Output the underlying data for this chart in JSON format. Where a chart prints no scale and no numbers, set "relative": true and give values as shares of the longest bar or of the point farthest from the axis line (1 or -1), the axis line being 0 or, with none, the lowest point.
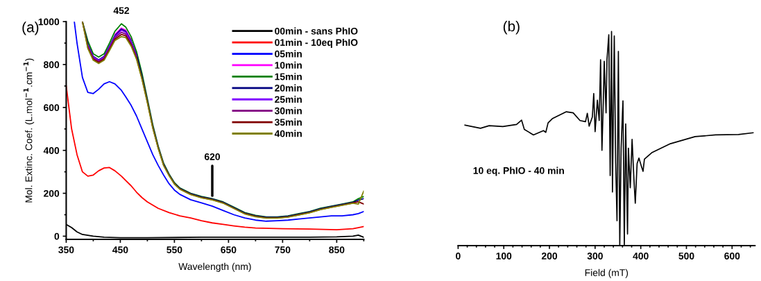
{
  "chart_data": [
    {
      "type": "line",
      "title": "(a)",
      "xlabel": "Wavelength (nm)",
      "ylabel": "Mol. Extinc. Coef. (L.mol$^{−1}$.cm$^{−1}$)",
      "xlim": [
        350,
        900
      ],
      "xticks": [
        350,
        450,
        550,
        650,
        750,
        850
      ],
      "ylim": [
        -15,
        1000
      ],
      "yticks": [
        0,
        200,
        400,
        600,
        800,
        1000
      ],
      "legend": "top right",
      "grid": false,
      "annotations": [
        {
          "text": "452",
          "x": 452,
          "y": 1000
        },
        {
          "text": "620",
          "x": 620,
          "y": 175
        }
      ],
      "series": [
        {
          "name": "00min - sans PhIO",
          "color": "#000000",
          "x": [
            350,
            360,
            370,
            380,
            400,
            420,
            450,
            500,
            600,
            700,
            800,
            850,
            880,
            890,
            900
          ],
          "values": [
            55,
            40,
            20,
            8,
            0,
            -5,
            -7,
            -7,
            -5,
            -5,
            -5,
            -3,
            0,
            5,
            -5
          ]
        },
        {
          "name": "01min - 10eq PhIO",
          "color": "#ff0000",
          "x": [
            350,
            360,
            370,
            380,
            390,
            400,
            410,
            420,
            430,
            440,
            452,
            460,
            470,
            480,
            490,
            500,
            520,
            540,
            560,
            580,
            600,
            620,
            640,
            660,
            680,
            700,
            750,
            800,
            850,
            880,
            890,
            900
          ],
          "values": [
            700,
            500,
            380,
            300,
            280,
            285,
            305,
            318,
            320,
            305,
            280,
            260,
            235,
            205,
            180,
            160,
            130,
            110,
            95,
            85,
            72,
            62,
            55,
            48,
            42,
            38,
            35,
            33,
            30,
            35,
            40,
            45
          ]
        },
        {
          "name": "05min",
          "color": "#0000ff",
          "x": [
            365,
            370,
            380,
            390,
            400,
            410,
            420,
            430,
            440,
            452,
            460,
            470,
            480,
            490,
            500,
            510,
            520,
            530,
            540,
            550,
            560,
            580,
            600,
            620,
            640,
            660,
            680,
            700,
            720,
            740,
            760,
            780,
            800,
            820,
            840,
            860,
            880,
            890,
            900
          ],
          "values": [
            1000,
            900,
            740,
            670,
            665,
            685,
            710,
            720,
            710,
            680,
            650,
            610,
            560,
            500,
            440,
            380,
            330,
            285,
            245,
            215,
            195,
            170,
            155,
            140,
            120,
            100,
            85,
            75,
            70,
            72,
            75,
            80,
            85,
            90,
            95,
            95,
            100,
            105,
            115
          ]
        },
        {
          "name": "10min",
          "color": "#ff00ff",
          "x": [
            440,
            452,
            460,
            470
          ],
          "values": [
            940,
            970,
            960,
            915
          ]
        },
        {
          "name": "15min",
          "color": "#008000",
          "x": [
            380,
            390,
            400,
            410,
            420,
            430,
            440,
            452,
            460,
            470,
            480,
            490,
            500,
            510,
            520,
            530,
            540,
            550,
            560,
            580,
            600,
            620,
            640,
            660,
            680,
            700,
            720,
            740,
            760,
            780,
            800,
            820,
            840,
            860,
            880,
            890,
            900
          ],
          "values": [
            1000,
            910,
            850,
            835,
            850,
            900,
            955,
            990,
            975,
            930,
            860,
            760,
            640,
            520,
            420,
            340,
            290,
            250,
            225,
            200,
            185,
            175,
            160,
            135,
            110,
            97,
            90,
            90,
            95,
            105,
            115,
            130,
            140,
            150,
            160,
            175,
            185
          ]
        },
        {
          "name": "20min",
          "color": "#000080",
          "x": [
            380,
            390,
            400,
            410,
            420,
            430,
            440,
            452,
            460,
            470,
            480,
            490,
            500,
            510,
            520,
            530,
            540,
            550,
            560,
            580,
            600,
            620,
            640,
            660,
            680,
            700,
            720,
            740,
            760,
            780,
            800,
            820,
            840,
            860,
            880,
            890,
            900
          ],
          "values": [
            1000,
            895,
            838,
            822,
            838,
            886,
            935,
            965,
            955,
            910,
            845,
            745,
            632,
            512,
            416,
            336,
            287,
            247,
            223,
            198,
            183,
            173,
            158,
            133,
            108,
            95,
            88,
            88,
            93,
            103,
            113,
            128,
            138,
            148,
            158,
            168,
            175
          ]
        },
        {
          "name": "25min",
          "color": "#8000ff",
          "x": [
            390,
            400,
            410,
            420,
            430,
            440,
            452,
            460,
            470,
            480
          ],
          "values": [
            890,
            835,
            820,
            835,
            882,
            930,
            960,
            950,
            905,
            840
          ]
        },
        {
          "name": "30min",
          "color": "#800080",
          "x": [
            390,
            400,
            410,
            420,
            430,
            440,
            452,
            460,
            470,
            480
          ],
          "values": [
            885,
            830,
            815,
            830,
            876,
            925,
            950,
            942,
            898,
            835
          ]
        },
        {
          "name": "35min",
          "color": "#800000",
          "x": [
            380,
            390,
            400,
            410,
            420,
            430,
            440,
            452,
            460,
            470,
            480,
            490,
            500,
            510,
            520,
            530,
            540,
            550,
            560,
            580,
            600,
            620,
            640,
            660,
            680,
            700,
            720,
            740,
            760,
            780,
            800,
            820,
            840,
            860,
            880,
            890,
            900
          ],
          "values": [
            1000,
            880,
            825,
            810,
            825,
            870,
            918,
            940,
            934,
            892,
            830,
            735,
            625,
            506,
            411,
            331,
            284,
            244,
            220,
            195,
            180,
            170,
            155,
            130,
            105,
            92,
            85,
            85,
            90,
            100,
            110,
            125,
            135,
            145,
            155,
            160,
            150
          ]
        },
        {
          "name": "40min",
          "color": "#808000",
          "x": [
            380,
            390,
            400,
            410,
            420,
            430,
            440,
            452,
            460,
            470,
            480,
            490,
            500,
            510,
            520,
            530,
            540,
            550,
            560,
            580,
            600,
            620,
            640,
            660,
            680,
            700,
            720,
            740,
            760,
            780,
            800,
            820,
            840,
            860,
            880,
            890,
            900
          ],
          "values": [
            1000,
            875,
            820,
            805,
            820,
            865,
            912,
            930,
            926,
            886,
            825,
            732,
            622,
            504,
            410,
            330,
            283,
            243,
            219,
            194,
            179,
            169,
            154,
            129,
            104,
            91,
            84,
            84,
            89,
            99,
            109,
            124,
            134,
            144,
            154,
            150,
            210
          ]
        }
      ]
    },
    {
      "type": "line",
      "title": "(b)",
      "xlabel": "Field (mT)",
      "relative": true,
      "tick_labels": "x",
      "xlim": [
        0,
        650
      ],
      "xticks": [
        0,
        100,
        200,
        300,
        400,
        500,
        600
      ],
      "grid": false,
      "legend": false,
      "annotations": [
        "10 eq. PhIO - 40 min"
      ],
      "series": [
        {
          "color": "#000000",
          "x": [
            15,
            49,
            68,
            98,
            128,
            139,
            145,
            165,
            187,
            192,
            197,
            207,
            237,
            252,
            267,
            279,
            283,
            287,
            294,
            297,
            300,
            305,
            309,
            312,
            315,
            318,
            320,
            324,
            326,
            330,
            333,
            336,
            338,
            342,
            345,
            348,
            351,
            354,
            357,
            361,
            364,
            367,
            371,
            373,
            377,
            381,
            385,
            388,
            392,
            396,
            401,
            405,
            408,
            425,
            465,
            519,
            564,
            614,
            646
          ],
          "values": [
            0.563,
            0.548,
            0.56,
            0.556,
            0.566,
            0.586,
            0.543,
            0.517,
            0.537,
            0.529,
            0.573,
            0.594,
            0.625,
            0.62,
            0.584,
            0.579,
            0.618,
            0.558,
            0.601,
            0.71,
            0.532,
            0.679,
            0.584,
            0.868,
            0.445,
            0.671,
            0.861,
            0.62,
            0.868,
            0.985,
            0.327,
            1.0,
            0.25,
            0.979,
            0.388,
            0.116,
            0.907,
            0.0,
            0.455,
            0.676,
            0.0,
            0.568,
            0.054,
            0.455,
            0.27,
            0.496,
            0.311,
            0.198,
            0.383,
            0.409,
            0.373,
            0.347,
            0.404,
            0.435,
            0.476,
            0.509,
            0.517,
            0.519,
            0.527
          ]
        }
      ]
    }
  ]
}
